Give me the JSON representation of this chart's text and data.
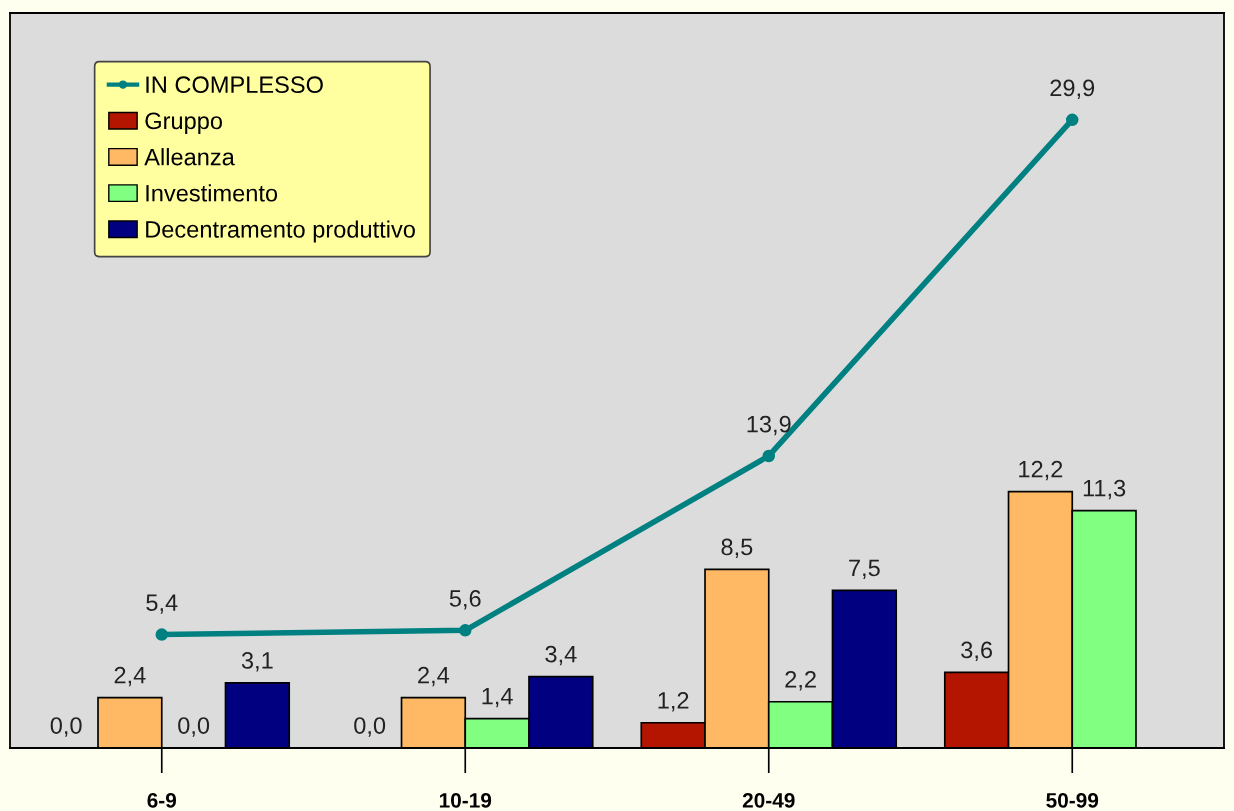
{
  "chart_data": {
    "type": "bar",
    "categories": [
      "6-9",
      "10-19",
      "20-49",
      "50-99"
    ],
    "series": [
      {
        "name": "IN COMPLESSO",
        "type": "line",
        "color": "#008080",
        "values": [
          5.4,
          5.6,
          13.9,
          29.9
        ],
        "value_labels": [
          "5,4",
          "5,6",
          "13,9",
          "29,9"
        ]
      },
      {
        "name": "Gruppo",
        "color": "#b31500",
        "values": [
          0.0,
          0.0,
          1.2,
          3.6
        ],
        "value_labels": [
          "0,0",
          "0,0",
          "1,2",
          "3,6"
        ]
      },
      {
        "name": "Alleanza",
        "color": "#ffb964",
        "values": [
          2.4,
          2.4,
          8.5,
          12.2
        ],
        "value_labels": [
          "2,4",
          "2,4",
          "8,5",
          "12,2"
        ]
      },
      {
        "name": "Investimento",
        "color": "#80ff80",
        "values": [
          0.0,
          1.4,
          2.2,
          11.3
        ],
        "value_labels": [
          "0,0",
          "1,4",
          "2,2",
          "11,3"
        ]
      },
      {
        "name": "Decentramento produttivo",
        "color": "#000080",
        "values": [
          3.1,
          3.4,
          7.5,
          null
        ],
        "value_labels": [
          "3,1",
          "3,4",
          "7,5",
          null
        ]
      }
    ],
    "marker": "circle",
    "grid": false,
    "legend": "top left",
    "tick_labels": "x"
  }
}
